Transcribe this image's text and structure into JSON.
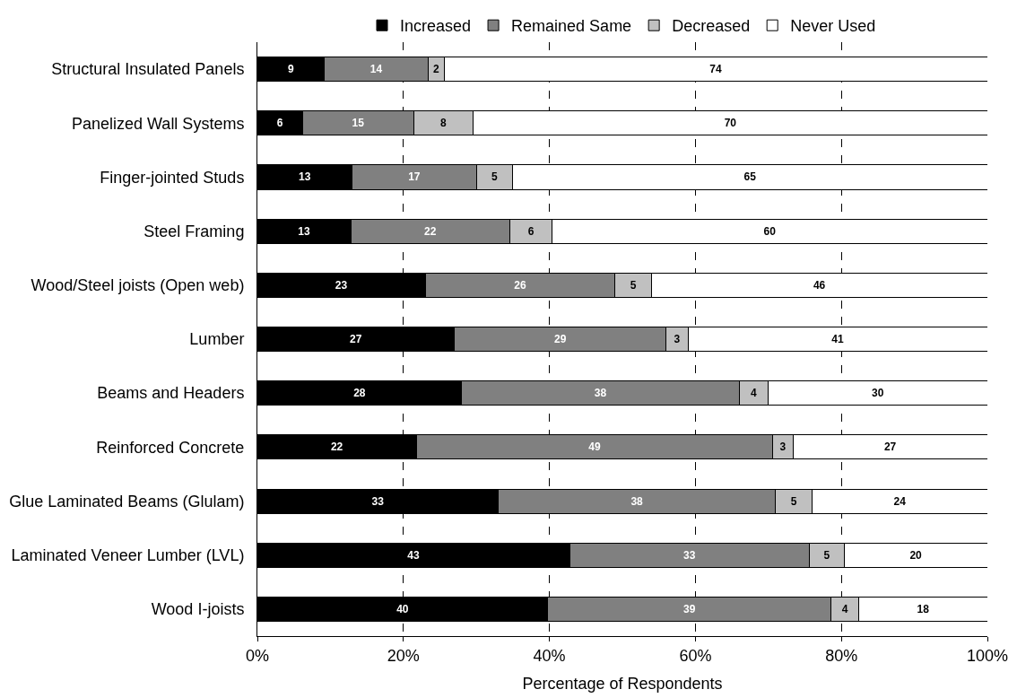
{
  "chart_data": {
    "type": "bar",
    "orientation": "horizontal",
    "stacked": true,
    "xlabel": "Percentage of Respondents",
    "categories": [
      "Structural Insulated Panels",
      "Panelized Wall Systems",
      "Finger-jointed Studs",
      "Steel Framing",
      "Wood/Steel joists (Open web)",
      "Lumber",
      "Beams and Headers",
      "Reinforced Concrete",
      "Glue Laminated Beams (Glulam)",
      "Laminated Veneer Lumber (LVL)",
      "Wood I-joists"
    ],
    "series": [
      {
        "name": "Increased",
        "color": "#000000",
        "values": [
          9.2,
          6.2,
          13,
          12.8,
          23,
          27,
          28,
          21.8,
          33,
          42.8,
          39.8
        ],
        "value_labels": [
          "9",
          "6",
          "13",
          "13",
          "23",
          "27",
          "28",
          "22",
          "33",
          "43",
          "40"
        ]
      },
      {
        "name": "Remained Same",
        "color": "#808080",
        "values": [
          14.2,
          15.2,
          17,
          21.8,
          26,
          29,
          38,
          48.8,
          38,
          32.8,
          38.8
        ],
        "value_labels": [
          "14",
          "15",
          "17",
          "22",
          "26",
          "29",
          "38",
          "49",
          "38",
          "33",
          "39"
        ]
      },
      {
        "name": "Decreased",
        "color": "#c0c0c0",
        "values": [
          2.2,
          8.2,
          5,
          5.8,
          5,
          3,
          4,
          2.8,
          5,
          4.8,
          3.8
        ],
        "value_labels": [
          "2",
          "8",
          "5",
          "6",
          "5",
          "3",
          "4",
          "3",
          "5",
          "5",
          "4"
        ]
      },
      {
        "name": "Never Used",
        "color": "#ffffff",
        "values": [
          74.4,
          70.4,
          65,
          59.6,
          46,
          41,
          30,
          26.6,
          24,
          19.6,
          17.6
        ],
        "value_labels": [
          "74",
          "70",
          "65",
          "60",
          "46",
          "41",
          "30",
          "27",
          "24",
          "20",
          "18"
        ]
      }
    ],
    "xlim": [
      0,
      100
    ],
    "xticks": [
      {
        "value": 0,
        "label": "0%"
      },
      {
        "value": 20,
        "label": "20%"
      },
      {
        "value": 40,
        "label": "40%"
      },
      {
        "value": 60,
        "label": "60%"
      },
      {
        "value": 80,
        "label": "80%"
      },
      {
        "value": 100,
        "label": "100%"
      }
    ],
    "grid": "x",
    "legend": "top"
  }
}
